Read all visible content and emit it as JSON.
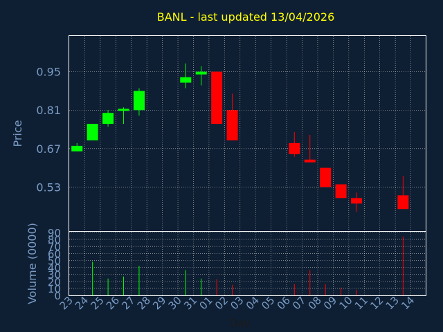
{
  "chart_data": {
    "type": "candlestick",
    "title": "BANL - last updated 13/04/2026",
    "xlabel": "Day",
    "price_ylabel": "Price",
    "volume_ylabel": "Volume (0000)",
    "price_yticks": [
      "0.95",
      "0.81",
      "0.67",
      "0.53"
    ],
    "price_ylim": [
      0.37,
      1.08
    ],
    "volume_yticks": [
      "0",
      "10",
      "20",
      "30",
      "40",
      "50",
      "60",
      "70",
      "80",
      "90"
    ],
    "volume_ylim": [
      0,
      90
    ],
    "grid": true,
    "colors": {
      "background": "#0f1f33",
      "title": "#ffff00",
      "label": "#7a9cc6",
      "up": "#00ff00",
      "down": "#ff0000",
      "grid": "#c8c8c8"
    },
    "days": [
      "23",
      "24",
      "25",
      "26",
      "27",
      "28",
      "29",
      "30",
      "31",
      "01",
      "02",
      "03",
      "04",
      "05",
      "06",
      "07",
      "08",
      "09",
      "10",
      "11",
      "12",
      "13",
      "14"
    ],
    "candles": [
      {
        "day": "23",
        "open": 0.66,
        "close": 0.68,
        "high": 0.69,
        "low": 0.66,
        "volume": 0
      },
      {
        "day": "24",
        "open": 0.7,
        "close": 0.76,
        "high": 0.76,
        "low": 0.7,
        "volume": 48
      },
      {
        "day": "25",
        "open": 0.76,
        "close": 0.8,
        "high": 0.81,
        "low": 0.75,
        "volume": 24
      },
      {
        "day": "26",
        "open": 0.81,
        "close": 0.815,
        "high": 0.82,
        "low": 0.76,
        "volume": 27
      },
      {
        "day": "27",
        "open": 0.81,
        "close": 0.88,
        "high": 0.89,
        "low": 0.79,
        "volume": 42
      },
      {
        "day": "30",
        "open": 0.91,
        "close": 0.93,
        "high": 0.98,
        "low": 0.89,
        "volume": 36
      },
      {
        "day": "31",
        "open": 0.94,
        "close": 0.95,
        "high": 0.97,
        "low": 0.9,
        "volume": 24
      },
      {
        "day": "01",
        "open": 0.95,
        "close": 0.76,
        "high": 0.95,
        "low": 0.76,
        "volume": 23
      },
      {
        "day": "02",
        "open": 0.81,
        "close": 0.7,
        "high": 0.87,
        "low": 0.7,
        "volume": 15
      },
      {
        "day": "06",
        "open": 0.69,
        "close": 0.65,
        "high": 0.73,
        "low": 0.64,
        "volume": 16
      },
      {
        "day": "07",
        "open": 0.63,
        "close": 0.62,
        "high": 0.72,
        "low": 0.62,
        "volume": 36
      },
      {
        "day": "08",
        "open": 0.6,
        "close": 0.53,
        "high": 0.6,
        "low": 0.53,
        "volume": 16
      },
      {
        "day": "09",
        "open": 0.54,
        "close": 0.49,
        "high": 0.54,
        "low": 0.49,
        "volume": 11
      },
      {
        "day": "10",
        "open": 0.49,
        "close": 0.47,
        "high": 0.51,
        "low": 0.44,
        "volume": 8
      },
      {
        "day": "13",
        "open": 0.5,
        "close": 0.45,
        "high": 0.57,
        "low": 0.45,
        "volume": 84
      }
    ]
  }
}
